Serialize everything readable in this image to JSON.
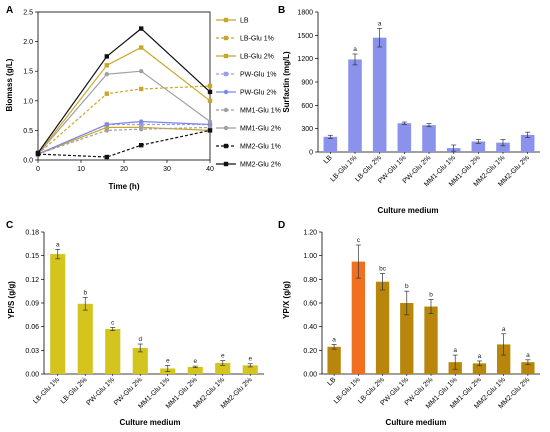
{
  "panels": [
    {
      "letter": "A",
      "chart_data": {
        "type": "line",
        "title": "",
        "xlabel": "Time (h)",
        "ylabel": "Biomass (g/L)",
        "xlim": [
          0,
          40
        ],
        "ylim": [
          0,
          2.5
        ],
        "xticks": [
          "0",
          "10",
          "20",
          "30",
          "40"
        ],
        "yticks": [
          "0.0",
          "0.5",
          "1.0",
          "1.5",
          "2.0",
          "2.5"
        ],
        "x": [
          0,
          16,
          24,
          40
        ],
        "legend_position": "right",
        "series": [
          {
            "name": "LB",
            "color": "#c8a82a",
            "style": "solid",
            "marker": "square",
            "values": [
              0.1,
              0.55,
              0.55,
              0.5
            ]
          },
          {
            "name": "LB-Glu 1%",
            "color": "#c8a82a",
            "style": "dashed",
            "marker": "square",
            "values": [
              0.1,
              1.12,
              1.2,
              1.25
            ]
          },
          {
            "name": "LB-Glu 2%",
            "color": "#c8a82a",
            "style": "solid",
            "marker": "square",
            "values": [
              0.1,
              1.6,
              1.9,
              1.0
            ]
          },
          {
            "name": "PW-Glu 1%",
            "color": "#9aa0e6",
            "style": "dashed",
            "marker": "square",
            "values": [
              0.1,
              0.6,
              0.6,
              0.6
            ]
          },
          {
            "name": "PW-Glu 2%",
            "color": "#7e86e6",
            "style": "solid",
            "marker": "circle",
            "values": [
              0.1,
              0.6,
              0.65,
              0.6
            ]
          },
          {
            "name": "MM1-Glu 1%",
            "color": "#a0a0a0",
            "style": "dashed",
            "marker": "circle",
            "values": [
              0.1,
              0.5,
              0.52,
              0.55
            ]
          },
          {
            "name": "MM1-Glu 2%",
            "color": "#a0a0a0",
            "style": "solid",
            "marker": "circle",
            "values": [
              0.1,
              1.45,
              1.5,
              0.65
            ]
          },
          {
            "name": "MM2-Glu 1%",
            "color": "#111111",
            "style": "dashed",
            "marker": "square",
            "values": [
              0.1,
              0.05,
              0.25,
              0.5
            ]
          },
          {
            "name": "MM2-Glu 2%",
            "color": "#111111",
            "style": "solid",
            "marker": "square",
            "values": [
              0.12,
              1.75,
              2.22,
              1.15
            ]
          }
        ]
      }
    },
    {
      "letter": "B",
      "chart_data": {
        "type": "bar",
        "title": "",
        "xlabel": "Culture medium",
        "ylabel": "Surfactin (mg/L)",
        "ylim": [
          0,
          1800
        ],
        "yticks": [
          "0",
          "300",
          "600",
          "900",
          "1200",
          "1500",
          "1800"
        ],
        "categories": [
          "LB",
          "LB-Glu 1%",
          "LB-Glu 2%",
          "PW-Glu 1%",
          "PW-Glu 2%",
          "MM1-Glu 1%",
          "MM1-Glu 2%",
          "MM2-Glu 1%",
          "MM2-Glu 2%"
        ],
        "values": [
          195,
          1190,
          1470,
          370,
          345,
          50,
          135,
          120,
          220
        ],
        "errors": [
          20,
          70,
          120,
          15,
          20,
          40,
          25,
          40,
          35
        ],
        "letters": [
          "",
          "a",
          "a",
          "",
          "",
          "",
          "",
          "",
          ""
        ],
        "color": "#8b92ec"
      }
    },
    {
      "letter": "C",
      "chart_data": {
        "type": "bar",
        "title": "",
        "xlabel": "Culture medium",
        "ylabel": "YP/S (g/g)",
        "ylim": [
          0,
          0.18
        ],
        "yticks": [
          "0.00",
          "0.03",
          "0.06",
          "0.09",
          "0.12",
          "0.15",
          "0.18"
        ],
        "categories": [
          "LB-Glu 1%",
          "LB-Glu 2%",
          "PW-Glu 1%",
          "PW-Glu 2%",
          "MM1-Glu 1%",
          "MM1-Glu 2%",
          "MM2-Glu 1%",
          "MM2-Glu 2%"
        ],
        "values": [
          0.152,
          0.089,
          0.057,
          0.033,
          0.007,
          0.009,
          0.014,
          0.011
        ],
        "errors": [
          0.006,
          0.008,
          0.002,
          0.005,
          0.004,
          0.001,
          0.003,
          0.002
        ],
        "letters": [
          "a",
          "b",
          "c",
          "d",
          "e",
          "e",
          "e",
          "e"
        ],
        "color": "#d4c41e"
      }
    },
    {
      "letter": "D",
      "chart_data": {
        "type": "bar",
        "title": "",
        "xlabel": "Culture medium",
        "ylabel": "YP/X (g/g)",
        "ylim": [
          0,
          1.2
        ],
        "yticks": [
          "0.00",
          "0.20",
          "0.40",
          "0.60",
          "0.80",
          "1.00",
          "1.20"
        ],
        "categories": [
          "LB",
          "LB-Glu 1%",
          "LB-Glu 2%",
          "PW-Glu 1%",
          "PW-Glu 2%",
          "MM1-Glu 1%",
          "MM1-Glu 2%",
          "MM2-Glu 1%",
          "MM2-Glu 2%"
        ],
        "values": [
          0.23,
          0.95,
          0.78,
          0.6,
          0.57,
          0.1,
          0.09,
          0.25,
          0.1
        ],
        "errors": [
          0.02,
          0.14,
          0.07,
          0.1,
          0.06,
          0.06,
          0.02,
          0.09,
          0.02
        ],
        "letters": [
          "a",
          "c",
          "bc",
          "b",
          "b",
          "a",
          "a",
          "a",
          "a"
        ],
        "colors": [
          "#b8860b",
          "#f07020",
          "#b8860b",
          "#b8860b",
          "#b8860b",
          "#b8860b",
          "#b8860b",
          "#b8860b",
          "#b8860b"
        ]
      }
    }
  ]
}
